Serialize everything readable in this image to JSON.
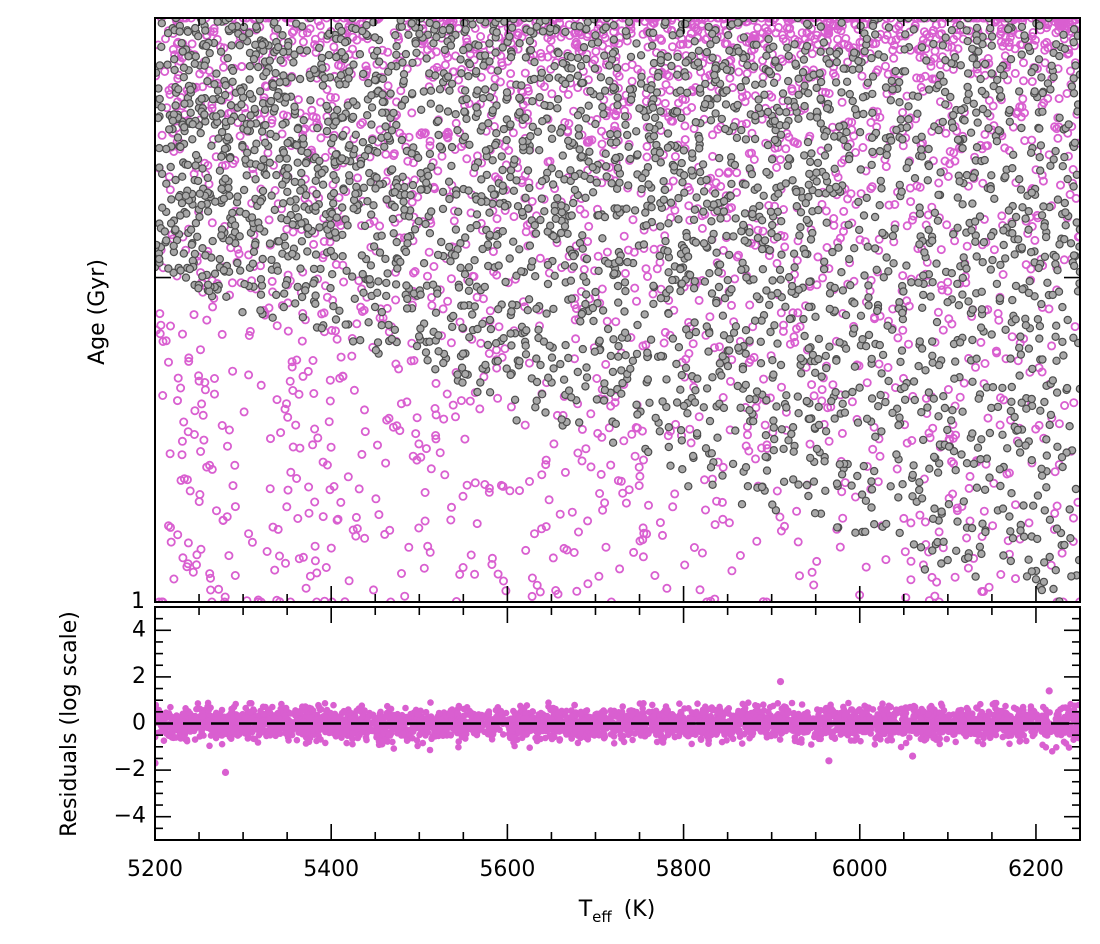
{
  "chart_data": [
    {
      "type": "scatter",
      "panel": "top",
      "ylabel": "Age  (Gyr)",
      "xlim": [
        5200,
        6250
      ],
      "yscale": "log",
      "ytick_labels": [
        "1"
      ],
      "series": [
        {
          "color": "#d95fd0",
          "marker": "open-circle",
          "generator": {
            "count": 2600,
            "seed": 7,
            "x_range": [
              5200,
              6250
            ],
            "log_age_range": [
              0.0,
              0.9
            ],
            "trend": "broad"
          }
        },
        {
          "color": "#4d4d4d",
          "fill": "#a8a8a8",
          "marker": "filled-circle-outlined",
          "generator": {
            "count": 3000,
            "seed": 11,
            "x_range": [
              5200,
              6250
            ],
            "log_age_range": [
              0.0,
              0.9
            ],
            "trend": "old-at-cool"
          }
        }
      ]
    },
    {
      "type": "scatter",
      "panel": "bottom",
      "xlabel": "T",
      "xlabel_subscript": "eff",
      "xlabel_unit": "(K)",
      "ylabel": "Residuals  (log scale)",
      "xlim": [
        5200,
        6250
      ],
      "ylim": [
        -5,
        5
      ],
      "x_ticks": [
        5200,
        5400,
        5600,
        5800,
        6000,
        6200
      ],
      "x_tick_labels": [
        "5200",
        "5400",
        "5600",
        "5800",
        "6000",
        "6200"
      ],
      "y_ticks": [
        -4,
        -2,
        0,
        2,
        4
      ],
      "y_tick_labels": [
        "−4",
        "−2",
        "0",
        "2",
        "4"
      ],
      "reference_line": {
        "y": 0,
        "style": "dashed",
        "color": "#000000"
      },
      "series": [
        {
          "color": "#d95fd0",
          "marker": "filled-circle",
          "generator": {
            "count": 3200,
            "seed": 23,
            "x_range": [
              5200,
              6250
            ],
            "sigma": 0.35
          },
          "outliers": [
            {
              "x": 5910,
              "y": 1.8
            },
            {
              "x": 6215,
              "y": 1.4
            },
            {
              "x": 5280,
              "y": -2.1
            },
            {
              "x": 5200,
              "y": -1.7
            },
            {
              "x": 5965,
              "y": -1.6
            },
            {
              "x": 6060,
              "y": -1.4
            }
          ]
        }
      ]
    }
  ]
}
